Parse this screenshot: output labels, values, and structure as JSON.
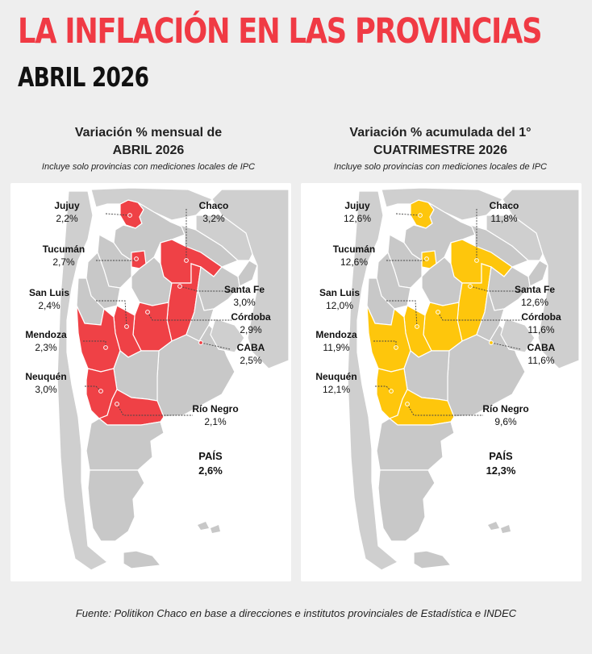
{
  "header": {
    "title": "LA INFLACIÓN EN LAS PROVINCIAS",
    "subtitle": "ABRIL 2026"
  },
  "colors": {
    "monthly_highlight": "#ef4146",
    "cumulative_highlight": "#fec60c",
    "base_land": "#c8c8c8",
    "title_red": "#f03a44"
  },
  "panels": [
    {
      "heading_line1": "Variación % mensual de",
      "heading_line2": "ABRIL 2026",
      "note": "Incluye solo provincias con mediciones locales de IPC",
      "country_label": "PAÍS",
      "country_value": "2,6%",
      "provinces": [
        {
          "name": "Jujuy",
          "value": "2,2%"
        },
        {
          "name": "Chaco",
          "value": "3,2%"
        },
        {
          "name": "Tucumán",
          "value": "2,7%"
        },
        {
          "name": "Santa Fe",
          "value": "3,0%"
        },
        {
          "name": "San Luis",
          "value": "2,4%"
        },
        {
          "name": "Córdoba",
          "value": "2,9%"
        },
        {
          "name": "Mendoza",
          "value": "2,3%"
        },
        {
          "name": "CABA",
          "value": "2,5%"
        },
        {
          "name": "Neuquén",
          "value": "3,0%"
        },
        {
          "name": "Río Negro",
          "value": "2,1%"
        }
      ]
    },
    {
      "heading_line1": "Variación % acumulada del 1°",
      "heading_line2": "CUATRIMESTRE 2026",
      "note": "Incluye solo provincias con mediciones locales de IPC",
      "country_label": "PAÍS",
      "country_value": "12,3%",
      "provinces": [
        {
          "name": "Jujuy",
          "value": "12,6%"
        },
        {
          "name": "Chaco",
          "value": "11,8%"
        },
        {
          "name": "Tucumán",
          "value": "12,6%"
        },
        {
          "name": "Santa Fe",
          "value": "12,6%"
        },
        {
          "name": "San Luis",
          "value": "12,0%"
        },
        {
          "name": "Córdoba",
          "value": "11,6%"
        },
        {
          "name": "Mendoza",
          "value": "11,9%"
        },
        {
          "name": "CABA",
          "value": "11,6%"
        },
        {
          "name": "Neuquén",
          "value": "12,1%"
        },
        {
          "name": "Río Negro",
          "value": "9,6%"
        }
      ]
    }
  ],
  "source": "Fuente: Politikon Chaco en base a direcciones e institutos provinciales de Estadística e INDEC"
}
